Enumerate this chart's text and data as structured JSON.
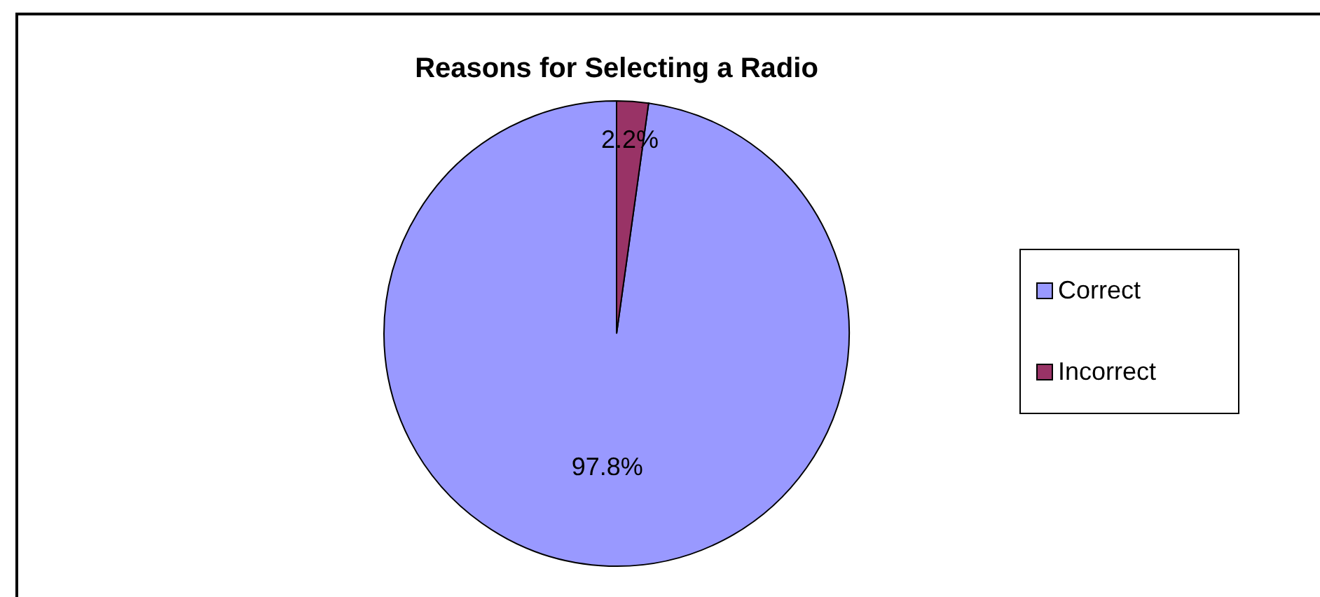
{
  "chart_data": {
    "type": "pie",
    "title": "Reasons for Selecting a Radio",
    "categories": [
      "Correct",
      "Incorrect"
    ],
    "values": [
      97.8,
      2.2
    ],
    "colors": [
      "#9999ff",
      "#993366"
    ],
    "value_labels": [
      "97.8%",
      "2.2%"
    ],
    "legend": "right"
  }
}
